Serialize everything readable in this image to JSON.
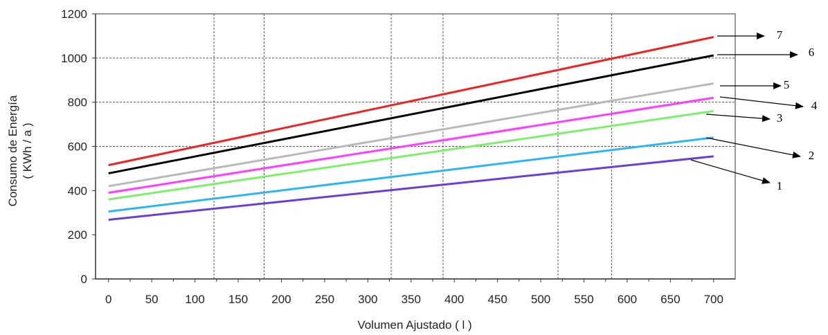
{
  "chart_data": {
    "type": "line",
    "xlabel": "Volumen Ajustado ( l )",
    "ylabel": "Consumo de Energía\n( KWh / a )",
    "xlim": [
      -15,
      725
    ],
    "ylim": [
      0,
      1200
    ],
    "x_ticks": [
      "0",
      "50",
      "100",
      "150",
      "200",
      "250",
      "300",
      "350",
      "400",
      "450",
      "500",
      "550",
      "600",
      "650",
      "700"
    ],
    "y_ticks": [
      "0",
      "200",
      "400",
      "600",
      "800",
      "1000",
      "1200"
    ],
    "grid": "dashed at selected x positions and y=600, 800, 1000",
    "series": [
      {
        "name": "1",
        "color": "#6a3fd6",
        "x": [
          0,
          700
        ],
        "y": [
          268,
          555
        ]
      },
      {
        "name": "2",
        "color": "#2bb6f0",
        "x": [
          0,
          700
        ],
        "y": [
          305,
          640
        ]
      },
      {
        "name": "3",
        "color": "#7cf06b",
        "x": [
          0,
          700
        ],
        "y": [
          360,
          760
        ]
      },
      {
        "name": "4",
        "color": "#ff3cff",
        "x": [
          0,
          700
        ],
        "y": [
          390,
          820
        ]
      },
      {
        "name": "5",
        "color": "#b9b9b9",
        "x": [
          0,
          700
        ],
        "y": [
          420,
          885
        ]
      },
      {
        "name": "6",
        "color": "#000000",
        "x": [
          0,
          700
        ],
        "y": [
          478,
          1012
        ]
      },
      {
        "name": "7",
        "color": "#ee2222",
        "x": [
          0,
          700
        ],
        "y": [
          515,
          1095
        ]
      }
    ]
  }
}
